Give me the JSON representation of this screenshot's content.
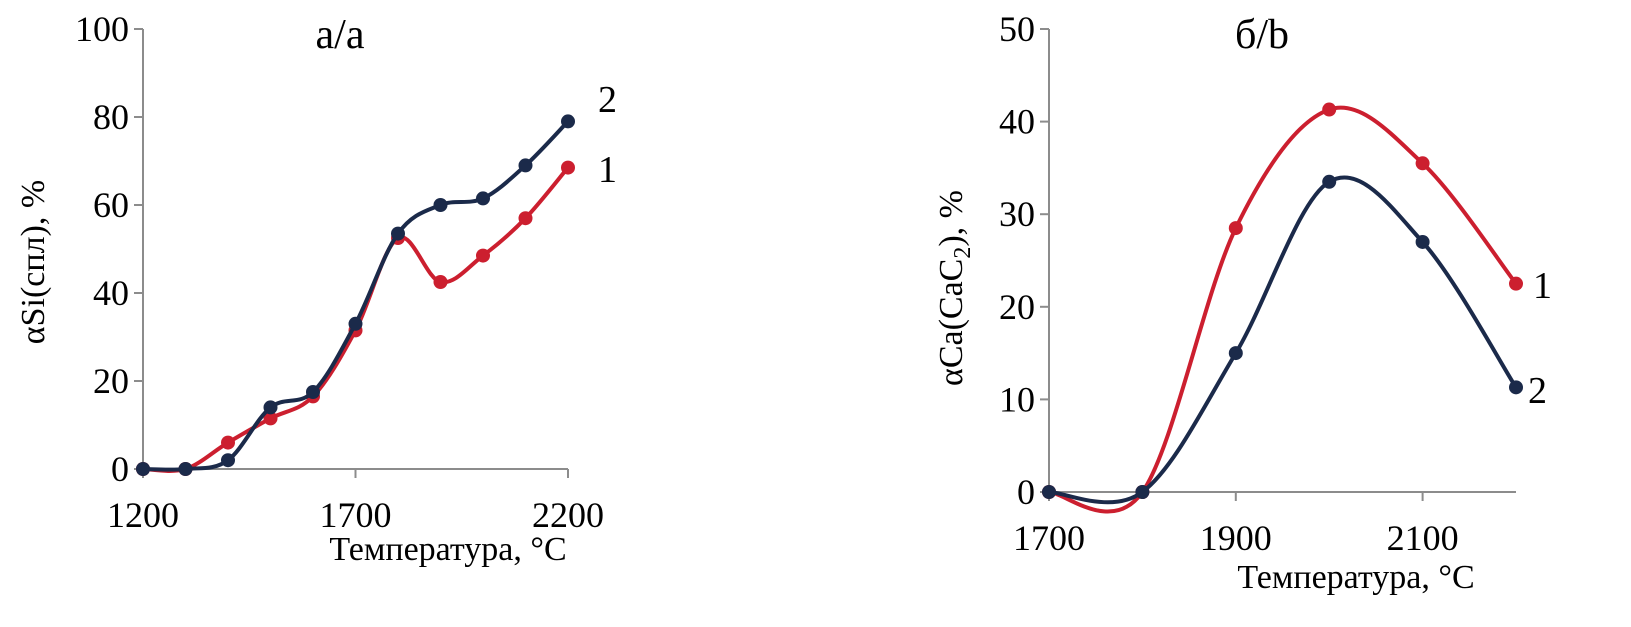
{
  "colors": {
    "series_1": "#cc1f2f",
    "series_2": "#1b2a4a",
    "axis": "#8c8c8c"
  },
  "chart_data": [
    {
      "type": "line",
      "title": "а/a",
      "xlabel": "Температура,  °С",
      "ylabel": "αSi(спл),  %",
      "xlim": [
        1200,
        2200
      ],
      "ylim": [
        0,
        100
      ],
      "xticks": [
        "1200",
        "1700",
        "2200"
      ],
      "yticks": [
        "0",
        "20",
        "40",
        "60",
        "80",
        "100"
      ],
      "grid": false,
      "series": [
        {
          "name": "1",
          "color": "#cc1f2f",
          "x": [
            1200,
            1300,
            1400,
            1500,
            1600,
            1700,
            1800,
            1900,
            2000,
            2100,
            2200
          ],
          "y": [
            0,
            0,
            6,
            11.5,
            16.5,
            31.5,
            52.5,
            42.5,
            48.5,
            57,
            68.5
          ]
        },
        {
          "name": "2",
          "color": "#1b2a4a",
          "x": [
            1200,
            1300,
            1400,
            1500,
            1600,
            1700,
            1800,
            1900,
            2000,
            2100,
            2200
          ],
          "y": [
            0,
            0,
            2,
            14,
            17.5,
            33,
            53.5,
            60,
            61.5,
            69,
            79
          ]
        }
      ]
    },
    {
      "type": "line",
      "title": "б/b",
      "xlabel": "Температура,  °С",
      "ylabel": "αCa(CaC2), %",
      "xlim": [
        1700,
        2200
      ],
      "ylim": [
        0,
        50
      ],
      "xticks": [
        "1700",
        "1900",
        "2100"
      ],
      "yticks": [
        "0",
        "10",
        "20",
        "30",
        "40",
        "50"
      ],
      "grid": false,
      "series": [
        {
          "name": "1",
          "color": "#cc1f2f",
          "x": [
            1700,
            1800,
            1900,
            2000,
            2100,
            2200
          ],
          "y": [
            0,
            0,
            28.5,
            41.3,
            35.5,
            22.5
          ]
        },
        {
          "name": "2",
          "color": "#1b2a4a",
          "x": [
            1700,
            1800,
            1900,
            2000,
            2100,
            2200
          ],
          "y": [
            0,
            0,
            15,
            33.5,
            27,
            11.3
          ]
        }
      ]
    }
  ]
}
